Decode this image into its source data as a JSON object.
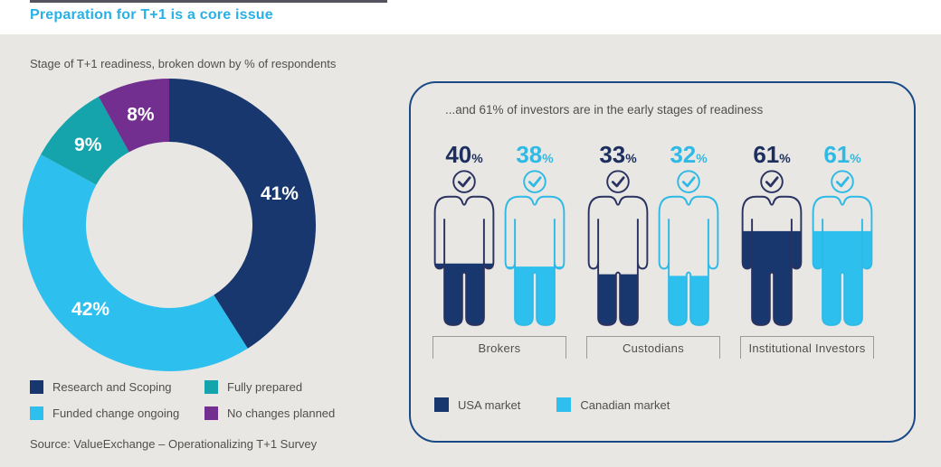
{
  "header": {
    "title": "Preparation for T+1 is a core issue"
  },
  "left": {
    "subtitle": "Stage of T+1 readiness, broken down by % of respondents",
    "source": "Source: ValueExchange – Operationalizing T+1 Survey"
  },
  "panel": {
    "title": "...and 61% of investors are in the early stages of readiness"
  },
  "colors": {
    "accent_title": "#27b1e6",
    "navy": "#17376e",
    "cyan": "#2dc0ee",
    "teal": "#16a4ac",
    "purple": "#722f90",
    "panel_border": "#1a4a85",
    "text": "#4f4f4d",
    "figure_stroke_navy": "#2a3360",
    "figure_stroke_cyan": "#2fb9e5",
    "number_navy": "#1d2f5f",
    "number_cyan": "#2fb9e5",
    "background": "#e8e7e4"
  },
  "icons": {
    "figure_head_badge": "check-icon"
  },
  "chart_data": [
    {
      "type": "pie",
      "donut": true,
      "title": "Stage of T+1 readiness, broken down by % of respondents",
      "start_angle_deg": 0,
      "direction": "clockwise",
      "value_label_format": "{value}%",
      "slices": [
        {
          "label": "Research and Scoping",
          "value": 41,
          "color": "#17376e"
        },
        {
          "label": "Funded change ongoing",
          "value": 42,
          "color": "#2dc0ee"
        },
        {
          "label": "Fully prepared",
          "value": 9,
          "color": "#16a4ac"
        },
        {
          "label": "No changes planned",
          "value": 8,
          "color": "#722f90"
        }
      ],
      "legend_order": [
        0,
        2,
        1,
        3
      ]
    },
    {
      "type": "bar",
      "variant": "pictogram-person-fill",
      "title": "...and 61% of investors are in the early stages of readiness",
      "unit": "%",
      "categories": [
        "Brokers",
        "Custodians",
        "Institutional Investors"
      ],
      "series": [
        {
          "name": "USA market",
          "color": "#17376e",
          "stroke": "#2a3360",
          "number_color": "#1d2f5f",
          "values": [
            40,
            33,
            61
          ]
        },
        {
          "name": "Canadian market",
          "color": "#2dc0ee",
          "stroke": "#2fb9e5",
          "number_color": "#2fb9e5",
          "values": [
            38,
            32,
            61
          ]
        }
      ],
      "legend_position": "bottom"
    }
  ]
}
